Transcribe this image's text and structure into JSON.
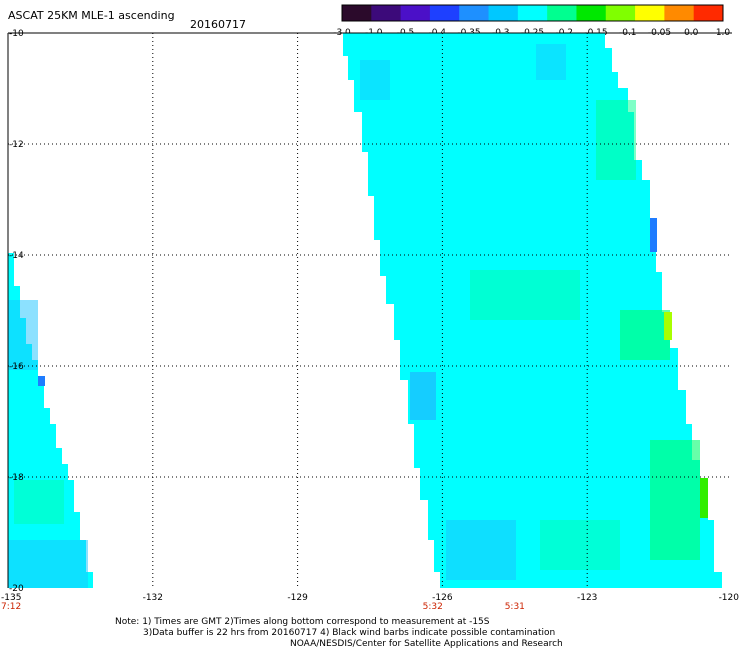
{
  "header": {
    "title": "ASCAT 25KM MLE-1 ascending",
    "date": "20160717"
  },
  "colorbar": {
    "labels": [
      "-3.0",
      "-1.0",
      "-0.5",
      "-0.4",
      "-0.35",
      "-0.3",
      "-0.25",
      "-0.2",
      "-0.15",
      "-0.1",
      "-0.05",
      "0.0",
      "1.0"
    ],
    "colors": [
      "#2b0a2b",
      "#3c0a7a",
      "#4b10c8",
      "#1e40ff",
      "#1e90ff",
      "#00c8ff",
      "#00ffff",
      "#00ff90",
      "#00e800",
      "#80ff00",
      "#ffff00",
      "#ff8a00",
      "#ff2a00"
    ]
  },
  "map": {
    "lat_labels": [
      "-10",
      "-12",
      "-14",
      "-16",
      "-18",
      "-20"
    ],
    "lon_labels": [
      "-135",
      "-132",
      "-129",
      "-126",
      "-123",
      "-120"
    ],
    "time_labels": [
      {
        "text": "7:12",
        "lon": -135
      },
      {
        "text": "5:32",
        "lon": -126.2
      },
      {
        "text": "5:31",
        "lon": -124.5
      }
    ],
    "data_color": "#00ffff"
  },
  "footer": {
    "line1": "Note: 1) Times are GMT 2)Times along bottom correspond to measurement at -15S",
    "line2": "3)Data buffer is 22 hrs from 20160717 4) Black wind barbs indicate possible contamination",
    "line3": "NOAA/NESDIS/Center for Satellite Applications and Research"
  }
}
